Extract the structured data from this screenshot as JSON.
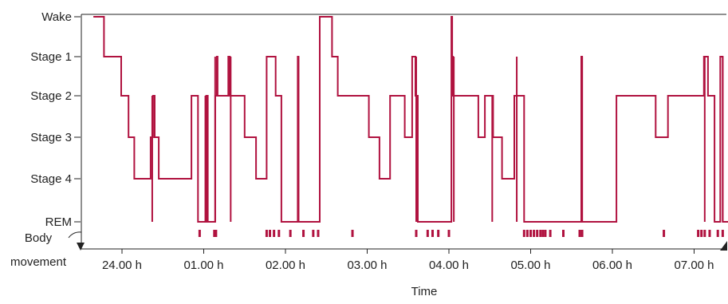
{
  "chart_data": {
    "type": "line",
    "xlabel": "Time",
    "ylabel": "",
    "colors": {
      "trace": "#b0123f",
      "axis": "#222222"
    },
    "y_categories": [
      "Wake",
      "Stage 1",
      "Stage 2",
      "Stage 3",
      "Stage 4",
      "REM"
    ],
    "movement_label": [
      "Body",
      "movement"
    ],
    "x_ticks": [
      {
        "h": 0,
        "label": "24.00 h"
      },
      {
        "h": 1,
        "label": "01.00 h"
      },
      {
        "h": 2,
        "label": "02.00 h"
      },
      {
        "h": 3,
        "label": "03.00 h"
      },
      {
        "h": 4,
        "label": "04.00 h"
      },
      {
        "h": 5,
        "label": "05.00 h"
      },
      {
        "h": 6,
        "label": "06.00 h"
      },
      {
        "h": 7,
        "label": "07.00 h"
      }
    ],
    "xlim": [
      -0.55,
      7.55
    ],
    "hypnogram_hours": [
      [
        -0.35,
        "Wake"
      ],
      [
        -0.22,
        "Stage 1"
      ],
      [
        -0.01,
        "Stage 2"
      ],
      [
        0.08,
        "Stage 3"
      ],
      [
        0.15,
        "Stage 4"
      ],
      [
        0.35,
        "Stage 3"
      ],
      [
        0.38,
        "Stage 2"
      ],
      [
        0.4,
        "Stage 3"
      ],
      [
        0.45,
        "Stage 4"
      ],
      [
        0.85,
        "Stage 2"
      ],
      [
        0.93,
        "REM"
      ],
      [
        1.03,
        "Stage 2"
      ],
      [
        1.05,
        "REM"
      ],
      [
        1.14,
        "Stage 2"
      ],
      [
        1.16,
        "Stage 1"
      ],
      [
        1.17,
        "Stage 2"
      ],
      [
        1.3,
        "Stage 1"
      ],
      [
        1.32,
        "Stage 2"
      ],
      [
        1.5,
        "Stage 3"
      ],
      [
        1.64,
        "Stage 4"
      ],
      [
        1.77,
        "Stage 1"
      ],
      [
        1.88,
        "Stage 2"
      ],
      [
        1.95,
        "REM"
      ],
      [
        2.15,
        "Stage 1"
      ],
      [
        2.16,
        "REM"
      ],
      [
        2.42,
        "Wake"
      ],
      [
        2.57,
        "Stage 1"
      ],
      [
        2.64,
        "Stage 2"
      ],
      [
        2.8,
        "Stage 2"
      ],
      [
        3.02,
        "Stage 3"
      ],
      [
        3.15,
        "Stage 4"
      ],
      [
        3.28,
        "Stage 2"
      ],
      [
        3.46,
        "Stage 3"
      ],
      [
        3.55,
        "Stage 1"
      ],
      [
        3.59,
        "Stage 2"
      ],
      [
        3.62,
        "REM"
      ],
      [
        4.03,
        "Wake"
      ],
      [
        4.04,
        "Stage 1"
      ],
      [
        4.05,
        "Stage 2"
      ],
      [
        4.36,
        "Stage 3"
      ],
      [
        4.44,
        "Stage 2"
      ],
      [
        4.54,
        "Stage 3"
      ],
      [
        4.65,
        "Stage 4"
      ],
      [
        4.8,
        "Stage 2"
      ],
      [
        4.85,
        "Stage 2"
      ],
      [
        4.92,
        "REM"
      ],
      [
        5.62,
        "Stage 1"
      ],
      [
        5.63,
        "REM"
      ],
      [
        6.05,
        "Stage 2"
      ],
      [
        6.53,
        "Stage 3"
      ],
      [
        6.68,
        "Stage 2"
      ],
      [
        7.12,
        "Stage 1"
      ],
      [
        7.17,
        "Stage 2"
      ],
      [
        7.25,
        "REM"
      ],
      [
        7.32,
        "Stage 1"
      ],
      [
        7.35,
        "REM"
      ],
      [
        7.48,
        "Stage 1"
      ],
      [
        7.5,
        "REM"
      ],
      [
        7.55,
        "REM"
      ]
    ],
    "spikes_hours": [
      [
        0.37,
        "Stage 2"
      ],
      [
        1.02,
        "Stage 2"
      ],
      [
        1.14,
        "Stage 1"
      ],
      [
        1.33,
        "Stage 1"
      ],
      [
        2.16,
        "Stage 1"
      ],
      [
        3.6,
        "Stage 1"
      ],
      [
        4.06,
        "Stage 1"
      ],
      [
        4.53,
        "Stage 2"
      ],
      [
        4.83,
        "Stage 1"
      ],
      [
        5.63,
        "Stage 1"
      ],
      [
        7.13,
        "Stage 1"
      ],
      [
        7.35,
        "Stage 1"
      ]
    ],
    "body_movement_hours": [
      0.95,
      1.13,
      1.15,
      1.77,
      1.81,
      1.86,
      1.92,
      2.06,
      2.22,
      2.34,
      2.4,
      2.82,
      3.6,
      3.74,
      3.8,
      3.87,
      4.0,
      4.92,
      4.96,
      5.0,
      5.04,
      5.08,
      5.12,
      5.15,
      5.18,
      5.24,
      5.4,
      5.6,
      5.63,
      6.63,
      7.05,
      7.09,
      7.13,
      7.19,
      7.29,
      7.35
    ]
  }
}
